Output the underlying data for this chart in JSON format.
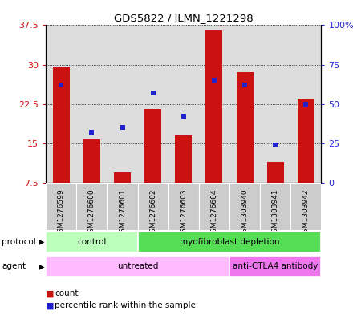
{
  "title": "GDS5822 / ILMN_1221298",
  "samples": [
    "GSM1276599",
    "GSM1276600",
    "GSM1276601",
    "GSM1276602",
    "GSM1276603",
    "GSM1276604",
    "GSM1303940",
    "GSM1303941",
    "GSM1303942"
  ],
  "counts": [
    29.5,
    15.8,
    9.5,
    21.5,
    16.5,
    36.5,
    28.5,
    11.5,
    23.5
  ],
  "percentiles": [
    62,
    32,
    35,
    57,
    42,
    65,
    62,
    24,
    50
  ],
  "ylim_left": [
    7.5,
    37.5
  ],
  "ylim_right": [
    0,
    100
  ],
  "yticks_left": [
    7.5,
    15,
    22.5,
    30,
    37.5
  ],
  "yticks_right": [
    0,
    25,
    50,
    75,
    100
  ],
  "ytick_labels_left": [
    "7.5",
    "15",
    "22.5",
    "30",
    "37.5"
  ],
  "ytick_labels_right": [
    "0",
    "25",
    "50",
    "75",
    "100%"
  ],
  "bar_color": "#cc1111",
  "dot_color": "#2222cc",
  "bar_bottom": 7.5,
  "protocol_groups": [
    {
      "label": "control",
      "start": 0,
      "end": 3,
      "color": "#bbffbb"
    },
    {
      "label": "myofibroblast depletion",
      "start": 3,
      "end": 9,
      "color": "#55dd55"
    }
  ],
  "agent_groups": [
    {
      "label": "untreated",
      "start": 0,
      "end": 6,
      "color": "#ffbbff"
    },
    {
      "label": "anti-CTLA4 antibody",
      "start": 6,
      "end": 9,
      "color": "#ee77ee"
    }
  ],
  "plot_bg_color": "#dddddd",
  "sample_bg_color": "#cccccc",
  "grid_color": "#000000",
  "fig_width": 4.4,
  "fig_height": 3.93,
  "dpi": 100
}
